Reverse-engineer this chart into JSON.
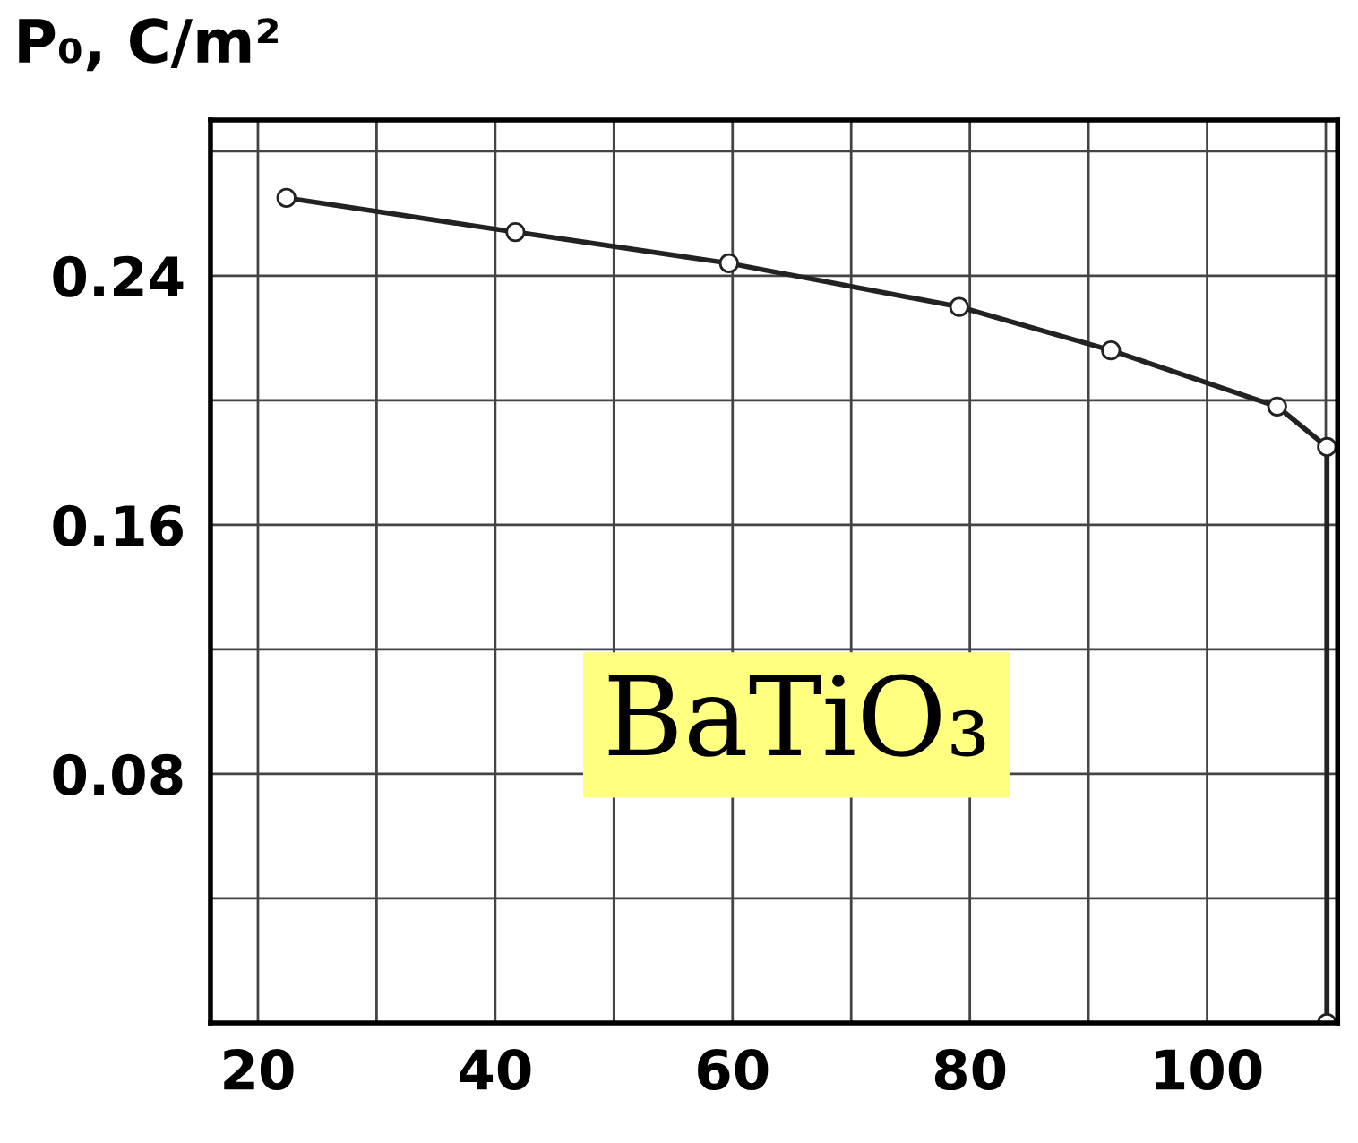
{
  "chart_data": {
    "type": "line",
    "ylabel": "P₀, C/m²",
    "annotations": [
      "BaTiO₃"
    ],
    "series": [
      {
        "color": "#222222",
        "x": [
          22.4,
          41.7,
          59.7,
          79.1,
          91.9,
          105.9,
          110.1,
          110.1
        ],
        "values": [
          0.265,
          0.254,
          0.244,
          0.23,
          0.216,
          0.198,
          0.185,
          0
        ]
      }
    ],
    "xlim": [
      16,
      111
    ],
    "ylim": [
      0,
      0.29
    ],
    "xticks": [
      20,
      {
        "value": 30,
        "label": null
      },
      40,
      {
        "value": 50,
        "label": null
      },
      60,
      {
        "value": 70,
        "label": null
      },
      80,
      {
        "value": 90,
        "label": null
      },
      100,
      {
        "value": 110,
        "label": null
      }
    ],
    "yticks": [
      {
        "value": 0.04,
        "label": null
      },
      0.08,
      {
        "value": 0.12,
        "label": null
      },
      0.16,
      {
        "value": 0.2,
        "label": null
      },
      0.24,
      {
        "value": 0.28,
        "label": null
      }
    ],
    "grid": true,
    "marker": "circle",
    "line_style": "solid"
  }
}
